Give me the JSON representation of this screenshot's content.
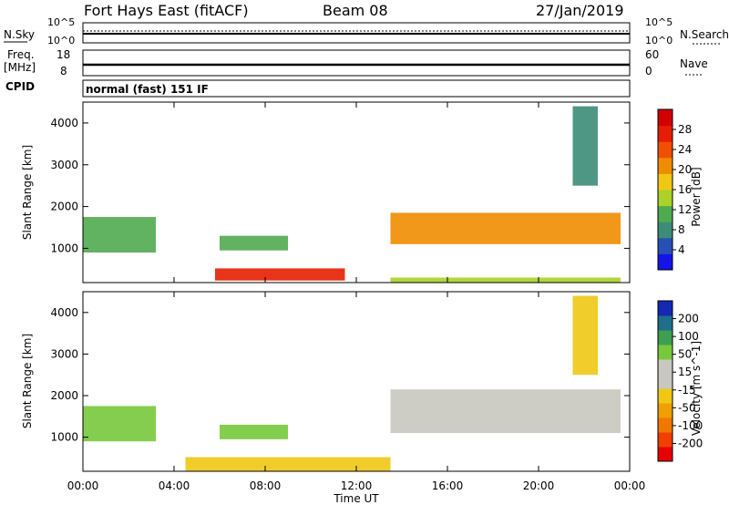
{
  "header": {
    "station": "Fort Hays East (fitACF)",
    "beam": "Beam 08",
    "date": "27/Jan/2019"
  },
  "noise_panel": {
    "left_label": "N.Sky",
    "right_label": "N.Search",
    "left_ticks": [
      "10^5",
      "10^0"
    ],
    "right_ticks": [
      "10^5",
      "10^0"
    ]
  },
  "freq_panel": {
    "left_label_1": "Freq.",
    "left_label_2": "[MHz]",
    "right_label": "Nave",
    "left_ticks": [
      "18",
      "8"
    ],
    "right_ticks": [
      "60",
      "0"
    ]
  },
  "cpid": {
    "label": "CPID",
    "text": "normal (fast) 151 IF"
  },
  "time_axis": {
    "label": "Time UT",
    "ticks": [
      "00:00",
      "04:00",
      "08:00",
      "12:00",
      "16:00",
      "20:00",
      "00:00"
    ]
  },
  "range_axis": {
    "label": "Slant Range [km]",
    "ticks": [
      "1000",
      "2000",
      "3000",
      "4000"
    ]
  },
  "power_colorbar": {
    "label": "Power [dB]",
    "ticks": [
      "4",
      "8",
      "12",
      "16",
      "20",
      "24",
      "28"
    ],
    "colors": [
      "#1414e6",
      "#2850b4",
      "#3c8c78",
      "#50aa50",
      "#aad228",
      "#f0c814",
      "#f08c00",
      "#f05000",
      "#e61e00",
      "#d20000"
    ]
  },
  "velocity_colorbar": {
    "label": "Velocity [m s^-1]",
    "ticks": [
      "200",
      "100",
      "50",
      "15",
      "-15",
      "-50",
      "-100",
      "-200"
    ],
    "colors": [
      "#1428b4",
      "#1e6e8c",
      "#3ca050",
      "#78c83c",
      "#c8c8c0",
      "#c8c8c0",
      "#f0c814",
      "#f0a000",
      "#f07800",
      "#f04000",
      "#e60000"
    ]
  },
  "chart_data": {
    "type": "heatmap",
    "x_range_hours": [
      0,
      24
    ],
    "y_range_km": [
      180,
      4500
    ],
    "power_regions": [
      {
        "t0": 0.0,
        "t1": 3.2,
        "r0": 900,
        "r1": 1750,
        "power_db": 10
      },
      {
        "t0": 5.8,
        "t1": 11.5,
        "r0": 230,
        "r1": 520,
        "power_db": 25
      },
      {
        "t0": 6.0,
        "t1": 9.0,
        "r0": 950,
        "r1": 1300,
        "power_db": 10
      },
      {
        "t0": 13.5,
        "t1": 23.6,
        "r0": 1100,
        "r1": 1850,
        "power_db": 20
      },
      {
        "t0": 13.5,
        "t1": 23.6,
        "r0": 180,
        "r1": 300,
        "power_db": 14
      },
      {
        "t0": 21.5,
        "t1": 22.6,
        "r0": 2500,
        "r1": 4400,
        "power_db": 9
      }
    ],
    "velocity_regions": [
      {
        "t0": 0.0,
        "t1": 3.2,
        "r0": 900,
        "r1": 1750,
        "velocity": 60
      },
      {
        "t0": 4.5,
        "t1": 13.5,
        "r0": 180,
        "r1": 520,
        "velocity": -40
      },
      {
        "t0": 6.0,
        "t1": 9.0,
        "r0": 950,
        "r1": 1300,
        "velocity": 50
      },
      {
        "t0": 13.5,
        "t1": 23.6,
        "r0": 1100,
        "r1": 2150,
        "velocity": 0
      },
      {
        "t0": 21.5,
        "t1": 22.6,
        "r0": 2500,
        "r1": 4400,
        "velocity": -30
      }
    ]
  }
}
